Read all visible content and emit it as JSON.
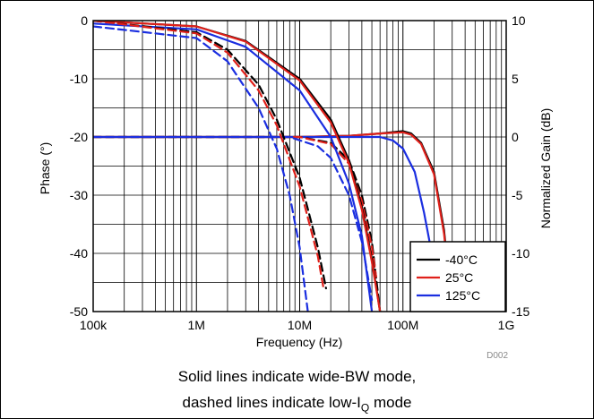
{
  "chart_data": {
    "type": "line",
    "x_scale": "log",
    "xlabel": "Frequency (Hz)",
    "xlim": [
      100000,
      1000000000
    ],
    "x_ticks": [
      {
        "value": 100000,
        "label": "100k"
      },
      {
        "value": 1000000,
        "label": "1M"
      },
      {
        "value": 10000000,
        "label": "10M"
      },
      {
        "value": 100000000,
        "label": "100M"
      },
      {
        "value": 1000000000,
        "label": "1G"
      }
    ],
    "ylabel_left": "Phase (°)",
    "ylim_left": [
      -50,
      0
    ],
    "y_ticks_left": [
      "0",
      "-10",
      "-20",
      "-30",
      "-40",
      "-50"
    ],
    "ylabel_right": "Normalized Gain (dB)",
    "ylim_right": [
      -15,
      10
    ],
    "y_ticks_right": [
      "10",
      "5",
      "0",
      "-5",
      "-10",
      "-15"
    ],
    "grid": true,
    "legend_position": "bottom-right",
    "note": "D002",
    "series": [
      {
        "name": "-40°C",
        "color": "#000000",
        "quantity": "gain",
        "mode": "wide-BW",
        "style": "solid",
        "points": [
          [
            100000,
            0
          ],
          [
            1000000,
            0
          ],
          [
            10000000,
            0
          ],
          [
            30000000,
            0.1
          ],
          [
            60000000,
            0.3
          ],
          [
            100000000,
            0.5
          ],
          [
            120000000,
            0.3
          ],
          [
            150000000,
            -0.5
          ],
          [
            200000000,
            -3
          ],
          [
            250000000,
            -8
          ],
          [
            300000000,
            -15
          ]
        ]
      },
      {
        "name": "25°C",
        "color": "#e0201a",
        "quantity": "gain",
        "mode": "wide-BW",
        "style": "solid",
        "points": [
          [
            100000,
            0
          ],
          [
            1000000,
            0
          ],
          [
            10000000,
            0
          ],
          [
            30000000,
            0.1
          ],
          [
            60000000,
            0.3
          ],
          [
            100000000,
            0.4
          ],
          [
            120000000,
            0.2
          ],
          [
            150000000,
            -0.6
          ],
          [
            200000000,
            -3.2
          ],
          [
            250000000,
            -8.3
          ],
          [
            300000000,
            -15
          ]
        ]
      },
      {
        "name": "125°C",
        "color": "#1a2ee0",
        "quantity": "gain",
        "mode": "wide-BW",
        "style": "solid",
        "points": [
          [
            100000,
            0
          ],
          [
            1000000,
            0
          ],
          [
            10000000,
            0
          ],
          [
            30000000,
            0
          ],
          [
            60000000,
            0
          ],
          [
            80000000,
            -0.3
          ],
          [
            100000000,
            -1
          ],
          [
            130000000,
            -3
          ],
          [
            160000000,
            -6.5
          ],
          [
            200000000,
            -11
          ],
          [
            230000000,
            -15
          ]
        ]
      },
      {
        "name": "-40°C",
        "color": "#000000",
        "quantity": "gain",
        "mode": "low-IQ",
        "style": "dashed",
        "points": [
          [
            100000,
            0
          ],
          [
            1000000,
            0
          ],
          [
            10000000,
            0
          ],
          [
            20000000,
            -0.5
          ],
          [
            30000000,
            -2
          ],
          [
            40000000,
            -5
          ],
          [
            50000000,
            -9
          ],
          [
            60000000,
            -15
          ]
        ]
      },
      {
        "name": "25°C",
        "color": "#e0201a",
        "quantity": "gain",
        "mode": "low-IQ",
        "style": "dashed",
        "points": [
          [
            100000,
            0
          ],
          [
            1000000,
            0
          ],
          [
            10000000,
            0
          ],
          [
            20000000,
            -0.6
          ],
          [
            30000000,
            -2.3
          ],
          [
            40000000,
            -5.5
          ],
          [
            50000000,
            -9.5
          ],
          [
            55000000,
            -12
          ]
        ]
      },
      {
        "name": "125°C",
        "color": "#1a2ee0",
        "quantity": "gain",
        "mode": "low-IQ",
        "style": "dashed",
        "points": [
          [
            100000,
            0
          ],
          [
            1000000,
            0
          ],
          [
            8000000,
            0
          ],
          [
            15000000,
            -0.8
          ],
          [
            20000000,
            -1.8
          ],
          [
            30000000,
            -5
          ],
          [
            40000000,
            -9
          ],
          [
            50000000,
            -14
          ]
        ]
      },
      {
        "name": "-40°C",
        "color": "#000000",
        "quantity": "phase",
        "mode": "wide-BW",
        "style": "solid",
        "points": [
          [
            100000,
            0
          ],
          [
            1000000,
            -1
          ],
          [
            3000000,
            -3.5
          ],
          [
            10000000,
            -10
          ],
          [
            20000000,
            -17
          ],
          [
            30000000,
            -24
          ],
          [
            40000000,
            -32
          ],
          [
            50000000,
            -41
          ],
          [
            60000000,
            -50
          ]
        ]
      },
      {
        "name": "25°C",
        "color": "#e0201a",
        "quantity": "phase",
        "mode": "wide-BW",
        "style": "solid",
        "points": [
          [
            100000,
            0
          ],
          [
            1000000,
            -1
          ],
          [
            3000000,
            -3.6
          ],
          [
            10000000,
            -10.3
          ],
          [
            20000000,
            -17.5
          ],
          [
            30000000,
            -24.5
          ],
          [
            40000000,
            -32.5
          ],
          [
            50000000,
            -41.5
          ],
          [
            60000000,
            -50
          ]
        ]
      },
      {
        "name": "125°C",
        "color": "#1a2ee0",
        "quantity": "phase",
        "mode": "wide-BW",
        "style": "solid",
        "points": [
          [
            100000,
            -0.5
          ],
          [
            1000000,
            -1.5
          ],
          [
            3000000,
            -4.5
          ],
          [
            10000000,
            -12
          ],
          [
            20000000,
            -20
          ],
          [
            30000000,
            -28
          ],
          [
            40000000,
            -37
          ],
          [
            50000000,
            -50
          ]
        ]
      },
      {
        "name": "-40°C",
        "color": "#000000",
        "quantity": "phase",
        "mode": "low-IQ",
        "style": "dashed",
        "points": [
          [
            100000,
            0
          ],
          [
            1000000,
            -2
          ],
          [
            2000000,
            -5
          ],
          [
            4000000,
            -11
          ],
          [
            6000000,
            -17
          ],
          [
            10000000,
            -27
          ],
          [
            15000000,
            -39
          ],
          [
            18000000,
            -46
          ]
        ]
      },
      {
        "name": "25°C",
        "color": "#e0201a",
        "quantity": "phase",
        "mode": "low-IQ",
        "style": "dashed",
        "points": [
          [
            100000,
            0
          ],
          [
            1000000,
            -2.2
          ],
          [
            2000000,
            -5.5
          ],
          [
            4000000,
            -12
          ],
          [
            6000000,
            -18
          ],
          [
            10000000,
            -28.5
          ],
          [
            15000000,
            -40.5
          ],
          [
            17000000,
            -46
          ]
        ]
      },
      {
        "name": "125°C",
        "color": "#1a2ee0",
        "quantity": "phase",
        "mode": "low-IQ",
        "style": "dashed",
        "points": [
          [
            100000,
            -1
          ],
          [
            1000000,
            -3
          ],
          [
            2000000,
            -7
          ],
          [
            4000000,
            -15
          ],
          [
            6000000,
            -22
          ],
          [
            8000000,
            -30
          ],
          [
            10000000,
            -39
          ],
          [
            12000000,
            -50
          ]
        ]
      }
    ]
  },
  "caption": {
    "line1": "Solid lines indicate wide-BW mode,",
    "line2_prefix": "dashed lines indicate low-I",
    "line2_sub": "Q",
    "line2_suffix": " mode"
  }
}
